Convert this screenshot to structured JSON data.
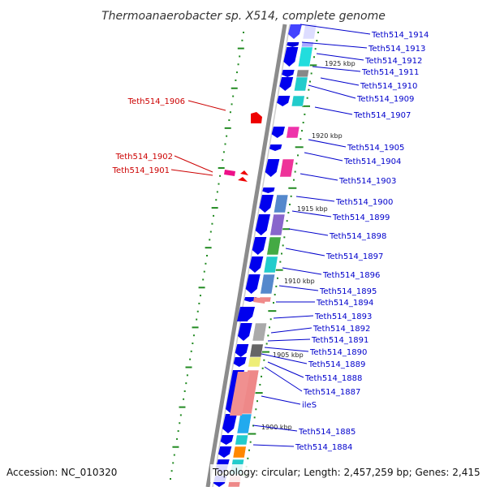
{
  "title": "Thermoanaerobacter sp. X514, complete genome",
  "accession": "Accession: NC_010320",
  "topology": "Topology: circular; Length: 2,457,259 bp; Genes: 2,415",
  "colors": {
    "forward_label": "#0000cc",
    "highlight_label": "#cc0000",
    "backbone": "#888888",
    "ticks": "#228b22"
  },
  "kbp_labels": [
    "1925 kbp",
    "1920 kbp",
    "1915 kbp",
    "1910 kbp",
    "1905 kbp",
    "1900 kbp"
  ],
  "genes": [
    {
      "label": "Teth514_1914",
      "strand": "forward"
    },
    {
      "label": "Teth514_1913",
      "strand": "forward"
    },
    {
      "label": "Teth514_1912",
      "strand": "forward"
    },
    {
      "label": "Teth514_1911",
      "strand": "forward"
    },
    {
      "label": "Teth514_1910",
      "strand": "forward"
    },
    {
      "label": "Teth514_1909",
      "strand": "forward"
    },
    {
      "label": "Teth514_1907",
      "strand": "forward"
    },
    {
      "label": "Teth514_1906",
      "strand": "reverse-highlight"
    },
    {
      "label": "Teth514_1905",
      "strand": "forward"
    },
    {
      "label": "Teth514_1904",
      "strand": "forward"
    },
    {
      "label": "Teth514_1902",
      "strand": "reverse-highlight"
    },
    {
      "label": "Teth514_1901",
      "strand": "reverse-highlight"
    },
    {
      "label": "Teth514_1903",
      "strand": "forward"
    },
    {
      "label": "Teth514_1900",
      "strand": "forward"
    },
    {
      "label": "Teth514_1899",
      "strand": "forward"
    },
    {
      "label": "Teth514_1898",
      "strand": "forward"
    },
    {
      "label": "Teth514_1897",
      "strand": "forward"
    },
    {
      "label": "Teth514_1896",
      "strand": "forward"
    },
    {
      "label": "Teth514_1895",
      "strand": "forward"
    },
    {
      "label": "Teth514_1894",
      "strand": "forward"
    },
    {
      "label": "Teth514_1893",
      "strand": "forward"
    },
    {
      "label": "Teth514_1892",
      "strand": "forward"
    },
    {
      "label": "Teth514_1891",
      "strand": "forward"
    },
    {
      "label": "Teth514_1890",
      "strand": "forward"
    },
    {
      "label": "Teth514_1889",
      "strand": "forward"
    },
    {
      "label": "Teth514_1888",
      "strand": "forward"
    },
    {
      "label": "Teth514_1887",
      "strand": "forward"
    },
    {
      "label": "ileS",
      "strand": "forward"
    },
    {
      "label": "Teth514_1885",
      "strand": "forward"
    },
    {
      "label": "Teth514_1884",
      "strand": "forward"
    }
  ]
}
